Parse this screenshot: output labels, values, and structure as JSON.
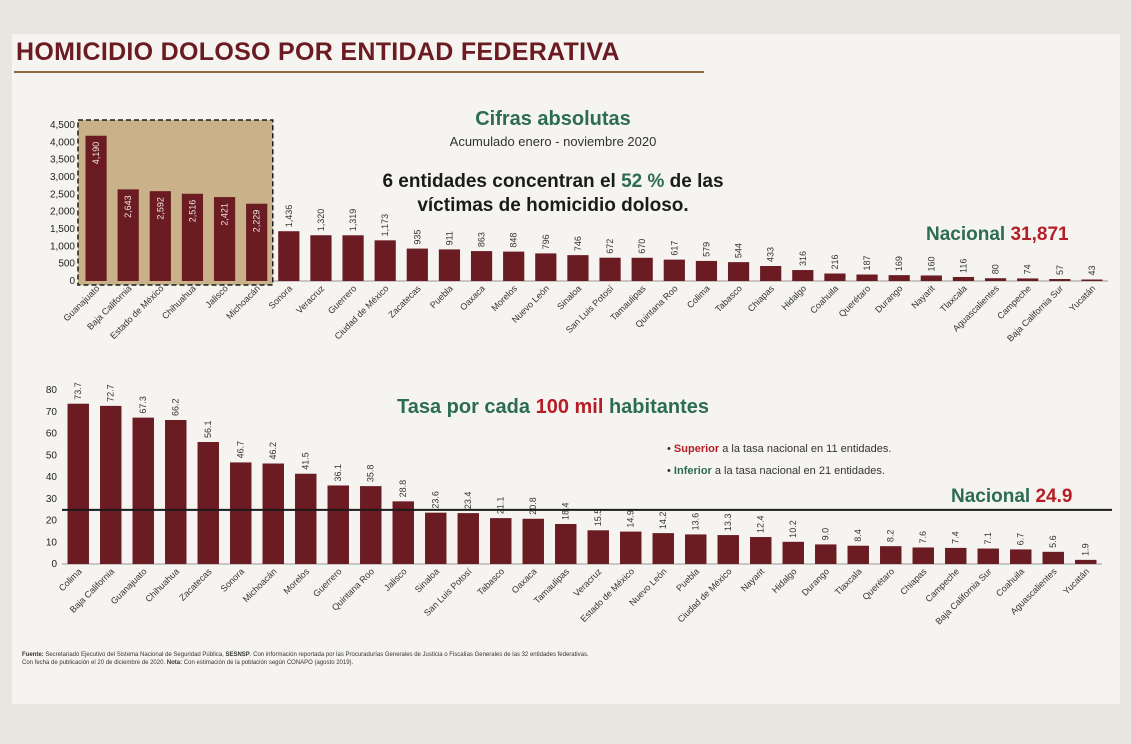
{
  "title": "HOMICIDIO DOLOSO POR ENTIDAD FEDERATIVA",
  "top_chart": {
    "subtitle": "Cifras absolutas",
    "period": "Acumulado enero - noviembre 2020",
    "headline_a": "6 entidades concentran el ",
    "headline_pct": "52 %",
    "headline_b": " de las",
    "headline_line2": "víctimas de homicidio doloso.",
    "national_label": "Nacional",
    "national_value": "31,871"
  },
  "bottom_chart": {
    "subtitle_a": "Tasa por cada ",
    "subtitle_b": "100 mil",
    "subtitle_c": " habitantes",
    "legend_superior_word": "Superior",
    "legend_superior_rest": " a la tasa nacional en 11 entidades.",
    "legend_inferior_word": "Inferior",
    "legend_inferior_rest": " a la tasa nacional en 21 entidades.",
    "national_label": "Nacional",
    "national_value": "24.9"
  },
  "footnote": {
    "fuente_label": "Fuente:",
    "fuente_text": " Secretariado Ejecutivo del Sistema Nacional de Seguridad Pública, ",
    "sesnsp": "SESNSP",
    "fuente_rest": ". Con información reportada por las Procuradurías Generales de Justicia o Fiscalías Generales de las 32 entidades federativas.",
    "line2_a": "Con fecha de publicación el 20 de diciembre de 2020. ",
    "nota_label": "Nota:",
    "line2_b": " Con estimación de la población según CONAPO (agosto 2019)."
  },
  "colors": {
    "bar": "#6b1b22",
    "highlight_box": "#c9b18a",
    "green": "#2c6b56",
    "red": "#b51e26"
  },
  "chart_data": [
    {
      "type": "bar",
      "title": "Cifras absolutas",
      "ylim": [
        0,
        4500
      ],
      "yticks": [
        "4,500",
        "4,000",
        "3,500",
        "3,000",
        "2,500",
        "2,000",
        "1,500",
        "1,000",
        "500",
        "0"
      ],
      "highlighted_count": 6,
      "categories": [
        "Guanajuato",
        "Baja California",
        "Estado de México",
        "Chihuahua",
        "Jalisco",
        "Michoacán",
        "Sonora",
        "Veracruz",
        "Guerrero",
        "Ciudad de México",
        "Zacatecas",
        "Puebla",
        "Oaxaca",
        "Morelos",
        "Nuevo León",
        "Sinaloa",
        "San Luis Potosí",
        "Tamaulipas",
        "Quintana Roo",
        "Colima",
        "Tabasco",
        "Chiapas",
        "Hidalgo",
        "Coahuila",
        "Querétaro",
        "Durango",
        "Nayarit",
        "Tlaxcala",
        "Aguascalientes",
        "Campeche",
        "Baja California Sur",
        "Yucatán"
      ],
      "values": [
        4190,
        2643,
        2592,
        2516,
        2421,
        2229,
        1436,
        1320,
        1319,
        1173,
        935,
        911,
        863,
        848,
        796,
        746,
        672,
        670,
        617,
        579,
        544,
        433,
        316,
        216,
        187,
        169,
        160,
        116,
        80,
        74,
        57,
        43
      ],
      "value_labels": [
        "4,190",
        "2,643",
        "2,592",
        "2,516",
        "2,421",
        "2,229",
        "1,436",
        "1,320",
        "1,319",
        "1,173",
        "935",
        "911",
        "863",
        "848",
        "796",
        "746",
        "672",
        "670",
        "617",
        "579",
        "544",
        "433",
        "316",
        "216",
        "187",
        "169",
        "160",
        "116",
        "80",
        "74",
        "57",
        "43"
      ]
    },
    {
      "type": "bar",
      "title": "Tasa por cada 100 mil habitantes",
      "ylim": [
        0,
        80
      ],
      "yticks": [
        "80",
        "70",
        "60",
        "50",
        "40",
        "30",
        "20",
        "10",
        "0"
      ],
      "reference_line": 24.9,
      "categories": [
        "Colima",
        "Baja California",
        "Guanajuato",
        "Chihuahua",
        "Zacatecas",
        "Sonora",
        "Michoacán",
        "Morelos",
        "Guerrero",
        "Quintana Roo",
        "Jalisco",
        "Sinaloa",
        "San Luis Potosí",
        "Tabasco",
        "Oaxaca",
        "Tamaulipas",
        "Veracruz",
        "Estado de México",
        "Nuevo León",
        "Puebla",
        "Ciudad de México",
        "Nayarit",
        "Hidalgo",
        "Durango",
        "Tlaxcala",
        "Querétaro",
        "Chiapas",
        "Campeche",
        "Baja California Sur",
        "Coahuila",
        "Aguascalientes",
        "Yucatán"
      ],
      "values": [
        73.7,
        72.7,
        67.3,
        66.2,
        56.1,
        46.7,
        46.2,
        41.5,
        36.1,
        35.8,
        28.8,
        23.6,
        23.4,
        21.1,
        20.8,
        18.4,
        15.5,
        14.9,
        14.2,
        13.6,
        13.3,
        12.4,
        10.2,
        9.0,
        8.4,
        8.2,
        7.6,
        7.4,
        7.1,
        6.7,
        5.6,
        1.9
      ],
      "value_labels": [
        "73.7",
        "72.7",
        "67.3",
        "66.2",
        "56.1",
        "46.7",
        "46.2",
        "41.5",
        "36.1",
        "35.8",
        "28.8",
        "23.6",
        "23.4",
        "21.1",
        "20.8",
        "18.4",
        "15.5",
        "14.9",
        "14.2",
        "13.6",
        "13.3",
        "12.4",
        "10.2",
        "9.0",
        "8.4",
        "8.2",
        "7.6",
        "7.4",
        "7.1",
        "6.7",
        "5.6",
        "1.9"
      ]
    }
  ]
}
